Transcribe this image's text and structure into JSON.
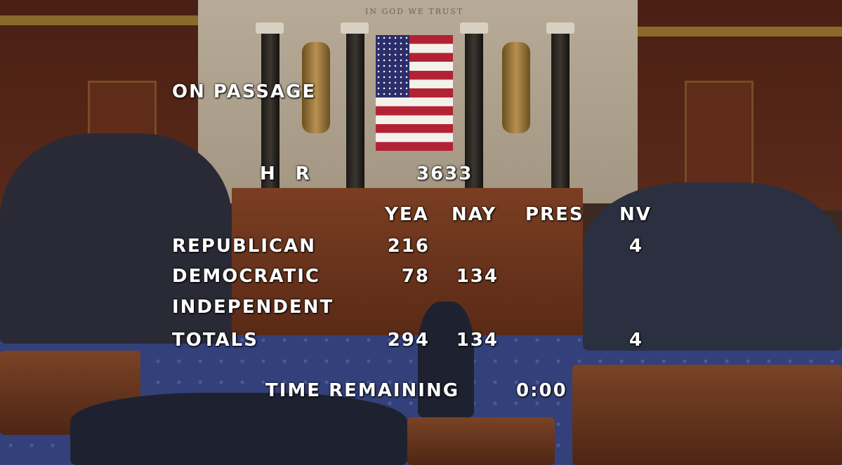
{
  "scene": {
    "motto": "IN GOD WE TRUST"
  },
  "vote": {
    "question": "ON PASSAGE",
    "bill_prefix": "H R",
    "bill_number": "3633",
    "columns": [
      "YEA",
      "NAY",
      "PRES",
      "NV"
    ],
    "rows": [
      {
        "party": "REPUBLICAN",
        "yea": "216",
        "nay": "",
        "pres": "",
        "nv": "4"
      },
      {
        "party": "DEMOCRATIC",
        "yea": "78",
        "nay": "134",
        "pres": "",
        "nv": ""
      },
      {
        "party": "INDEPENDENT",
        "yea": "",
        "nay": "",
        "pres": "",
        "nv": ""
      },
      {
        "party": "TOTALS",
        "yea": "294",
        "nay": "134",
        "pres": "",
        "nv": "4"
      }
    ],
    "time_label": "TIME REMAINING",
    "time_value": "0:00"
  }
}
